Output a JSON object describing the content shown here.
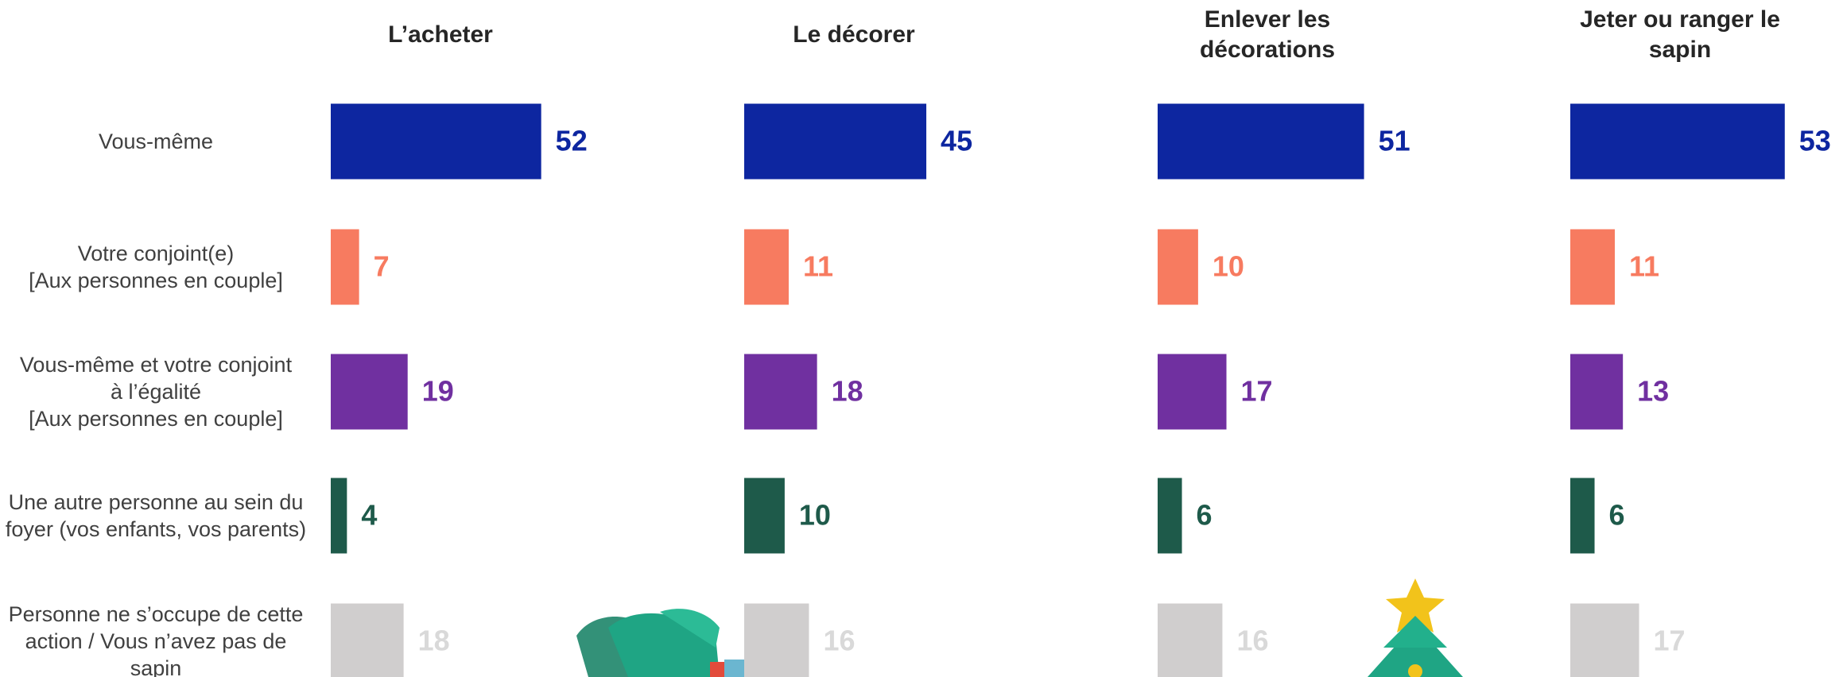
{
  "chart_data": {
    "type": "bar",
    "categories": [
      "Vous-même",
      "Votre conjoint(e)\n[Aux personnes en couple]",
      "Vous-même et votre conjoint\nà l’égalité\n[Aux personnes en couple]",
      "Une autre personne au sein du foyer (vos enfants, vos parents)",
      "Personne ne s’occupe de cette action / Vous n’avez pas de sapin"
    ],
    "colors": [
      "#0d26a0",
      "#f77b60",
      "#7030a0",
      "#1e5a4a",
      "#d0cece"
    ],
    "label_colors": [
      "#0d26a0",
      "#f77b60",
      "#7030a0",
      "#1e5a4a",
      "#d9d9d9"
    ],
    "series": [
      {
        "name": "L’acheter",
        "values": [
          52,
          7,
          19,
          4,
          18
        ]
      },
      {
        "name": "Le décorer",
        "values": [
          45,
          11,
          18,
          10,
          16
        ]
      },
      {
        "name": "Enlever les décorations",
        "values": [
          51,
          10,
          17,
          6,
          16
        ]
      },
      {
        "name": "Jeter ou ranger le sapin",
        "values": [
          53,
          11,
          13,
          6,
          17
        ]
      }
    ]
  }
}
